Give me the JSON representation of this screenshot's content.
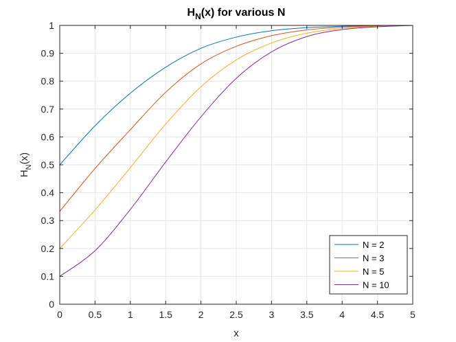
{
  "chart_data": {
    "type": "line",
    "title": {
      "main": "H",
      "sub": "N",
      "rest": "(x) for various N"
    },
    "xlabel": "x",
    "ylabel": {
      "main": "H",
      "sub": "N",
      "rest": "(x)"
    },
    "xlim": [
      0,
      5
    ],
    "ylim": [
      0,
      1
    ],
    "xticks": [
      0,
      0.5,
      1,
      1.5,
      2,
      2.5,
      3,
      3.5,
      4,
      4.5,
      5
    ],
    "xtick_labels": [
      "0",
      "0.5",
      "1",
      "1.5",
      "2",
      "2.5",
      "3",
      "3.5",
      "4",
      "4.5",
      "5"
    ],
    "yticks": [
      0,
      0.1,
      0.2,
      0.3,
      0.4,
      0.5,
      0.6,
      0.7,
      0.8,
      0.9,
      1
    ],
    "ytick_labels": [
      "0",
      "0.1",
      "0.2",
      "0.3",
      "0.4",
      "0.5",
      "0.6",
      "0.7",
      "0.8",
      "0.9",
      "1"
    ],
    "grid": true,
    "legend_position": "bottom-right",
    "x": [
      0,
      0.5,
      1,
      1.5,
      2,
      2.5,
      3,
      3.5,
      4,
      4.5,
      5
    ],
    "series": [
      {
        "name": "N = 2",
        "color": "#0072BD",
        "values": [
          0.5,
          0.64,
          0.757,
          0.85,
          0.918,
          0.958,
          0.981,
          0.992,
          0.997,
          0.999,
          1.0
        ]
      },
      {
        "name": "N = 3",
        "color": "#D95319",
        "values": [
          0.333,
          0.487,
          0.626,
          0.76,
          0.862,
          0.925,
          0.963,
          0.984,
          0.994,
          0.998,
          1.0
        ]
      },
      {
        "name": "N = 5",
        "color": "#EDB120",
        "values": [
          0.2,
          0.338,
          0.49,
          0.646,
          0.78,
          0.876,
          0.937,
          0.972,
          0.989,
          0.996,
          1.0
        ]
      },
      {
        "name": "N = 10",
        "color": "#7E2F8E",
        "values": [
          0.1,
          0.192,
          0.34,
          0.51,
          0.672,
          0.81,
          0.905,
          0.96,
          0.985,
          0.995,
          1.0
        ]
      }
    ]
  }
}
